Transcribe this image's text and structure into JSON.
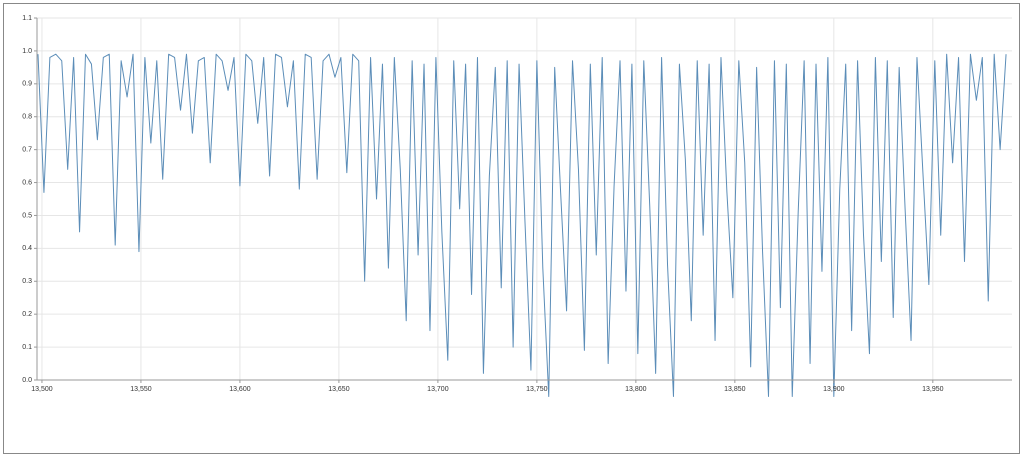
{
  "chart_data": {
    "type": "line",
    "x": [
      13498,
      13501,
      13504,
      13507,
      13510,
      13513,
      13516,
      13519,
      13522,
      13525,
      13528,
      13531,
      13534,
      13537,
      13540,
      13543,
      13546,
      13549,
      13552,
      13555,
      13558,
      13561,
      13564,
      13567,
      13570,
      13573,
      13576,
      13579,
      13582,
      13585,
      13588,
      13591,
      13594,
      13597,
      13600,
      13603,
      13606,
      13609,
      13612,
      13615,
      13618,
      13621,
      13624,
      13627,
      13630,
      13633,
      13636,
      13639,
      13642,
      13645,
      13648,
      13651,
      13654,
      13657,
      13660,
      13663,
      13666,
      13669,
      13672,
      13675,
      13678,
      13681,
      13684,
      13687,
      13690,
      13693,
      13696,
      13699,
      13702,
      13705,
      13708,
      13711,
      13714,
      13717,
      13720,
      13723,
      13726,
      13729,
      13732,
      13735,
      13738,
      13741,
      13744,
      13747,
      13750,
      13753,
      13756,
      13759,
      13762,
      13765,
      13768,
      13771,
      13774,
      13777,
      13780,
      13783,
      13786,
      13789,
      13792,
      13795,
      13798,
      13801,
      13804,
      13807,
      13810,
      13813,
      13816,
      13819,
      13822,
      13825,
      13828,
      13831,
      13834,
      13837,
      13840,
      13843,
      13846,
      13849,
      13852,
      13855,
      13858,
      13861,
      13864,
      13867,
      13870,
      13873,
      13876,
      13879,
      13882,
      13885,
      13888,
      13891,
      13894,
      13897,
      13900,
      13903,
      13906,
      13909,
      13912,
      13915,
      13918,
      13921,
      13924,
      13927,
      13930,
      13933,
      13936,
      13939,
      13942,
      13945,
      13948,
      13951,
      13954,
      13957,
      13960,
      13963,
      13966,
      13969,
      13972,
      13975,
      13978,
      13981,
      13984,
      13987
    ],
    "values": [
      0.99,
      0.57,
      0.98,
      0.99,
      0.97,
      0.64,
      0.98,
      0.45,
      0.99,
      0.96,
      0.73,
      0.98,
      0.99,
      0.41,
      0.97,
      0.86,
      0.99,
      0.39,
      0.98,
      0.72,
      0.97,
      0.61,
      0.99,
      0.98,
      0.82,
      0.99,
      0.75,
      0.97,
      0.98,
      0.66,
      0.99,
      0.97,
      0.88,
      0.98,
      0.59,
      0.99,
      0.97,
      0.78,
      0.98,
      0.62,
      0.99,
      0.98,
      0.83,
      0.97,
      0.58,
      0.99,
      0.98,
      0.61,
      0.97,
      0.99,
      0.92,
      0.98,
      0.63,
      0.99,
      0.97,
      0.3,
      0.98,
      0.55,
      0.96,
      0.34,
      0.98,
      0.64,
      0.18,
      0.97,
      0.38,
      0.96,
      0.15,
      0.98,
      0.45,
      0.06,
      0.97,
      0.52,
      0.96,
      0.26,
      0.98,
      0.02,
      0.62,
      0.95,
      0.28,
      0.97,
      0.1,
      0.96,
      0.48,
      0.03,
      0.97,
      0.34,
      -0.05,
      0.95,
      0.57,
      0.21,
      0.97,
      0.64,
      0.09,
      0.96,
      0.38,
      0.98,
      0.05,
      0.59,
      0.97,
      0.27,
      0.96,
      0.08,
      0.97,
      0.53,
      0.02,
      0.98,
      0.35,
      -0.05,
      0.96,
      0.67,
      0.18,
      0.97,
      0.44,
      0.96,
      0.12,
      0.98,
      0.57,
      0.25,
      0.97,
      0.66,
      0.04,
      0.95,
      0.39,
      -0.05,
      0.97,
      0.22,
      0.96,
      -0.05,
      0.51,
      0.97,
      0.05,
      0.96,
      0.33,
      0.98,
      -0.05,
      0.58,
      0.96,
      0.15,
      0.97,
      0.44,
      0.08,
      0.98,
      0.36,
      0.97,
      0.19,
      0.95,
      0.52,
      0.12,
      0.98,
      0.63,
      0.29,
      0.97,
      0.44,
      0.99,
      0.66,
      0.98,
      0.36,
      0.99,
      0.85,
      0.98,
      0.24,
      0.99,
      0.7,
      0.99
    ],
    "color": "#5b8db8",
    "xlim": [
      13497.5,
      13990
    ],
    "xticks": [
      {
        "value": 13500,
        "label": "13,500"
      },
      {
        "value": 13550,
        "label": "13,550"
      },
      {
        "value": 13600,
        "label": "13,600"
      },
      {
        "value": 13650,
        "label": "13,650"
      },
      {
        "value": 13700,
        "label": "13,700"
      },
      {
        "value": 13750,
        "label": "13,750"
      },
      {
        "value": 13800,
        "label": "13,800"
      },
      {
        "value": 13850,
        "label": "13,850"
      },
      {
        "value": 13900,
        "label": "13,900"
      },
      {
        "value": 13950,
        "label": "13,950"
      }
    ],
    "ylim": [
      0,
      1.1
    ],
    "yticks": [
      {
        "value": 0,
        "label": "0.0"
      },
      0.1,
      0.2,
      0.3,
      0.4,
      0.5,
      0.6,
      0.7,
      0.8,
      0.9,
      {
        "value": 1,
        "label": "1.0"
      },
      1.1
    ],
    "grid": true
  }
}
